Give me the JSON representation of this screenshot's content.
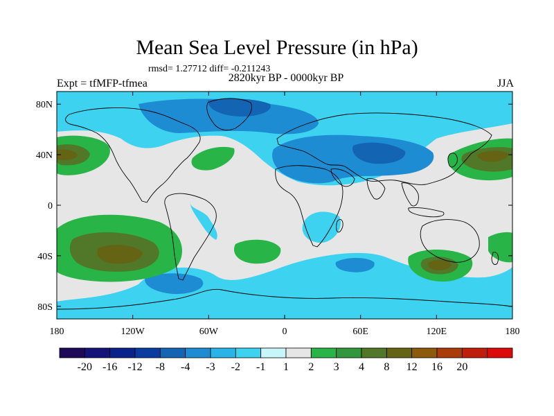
{
  "header": {
    "title": "Mean Sea Level Pressure (in hPa)",
    "stats": "rmsd= 1.27712 diff= -0.211243",
    "subtitle": "2820kyr BP - 0000kyr BP",
    "left_label": "Expt = tfMFP-tfmea",
    "right_label": "JJA"
  },
  "map": {
    "lon_range": [
      -180,
      180
    ],
    "lat_range": [
      -90,
      90
    ],
    "x_ticks": [
      {
        "lon": -180,
        "label": "180"
      },
      {
        "lon": -120,
        "label": "120W"
      },
      {
        "lon": -60,
        "label": "60W"
      },
      {
        "lon": 0,
        "label": "0"
      },
      {
        "lon": 60,
        "label": "60E"
      },
      {
        "lon": 120,
        "label": "120E"
      },
      {
        "lon": 180,
        "label": "180"
      }
    ],
    "y_ticks": [
      {
        "lat": 80,
        "label": "80N"
      },
      {
        "lat": 40,
        "label": "40N"
      },
      {
        "lat": 0,
        "label": "0"
      },
      {
        "lat": -40,
        "label": "40S"
      },
      {
        "lat": -80,
        "label": "80S"
      }
    ],
    "background_color": "#e6e6e6",
    "coast_color": "#000000"
  },
  "colorbar": {
    "colors": [
      "#1f0a5a",
      "#141478",
      "#0a238c",
      "#0a3ca0",
      "#1464b4",
      "#1e8cd2",
      "#28b4e6",
      "#3cd2f0",
      "#c8f5fa",
      "#e6e6e6",
      "#28b446",
      "#32963c",
      "#507828",
      "#646414",
      "#8c5a0a",
      "#aa3c0a",
      "#be1e0a",
      "#dc0a0a"
    ],
    "labels": [
      "-20",
      "-16",
      "-12",
      "-8",
      "-4",
      "-3",
      "-2",
      "-1",
      "1",
      "2",
      "3",
      "4",
      "8",
      "12",
      "16",
      "20"
    ]
  }
}
